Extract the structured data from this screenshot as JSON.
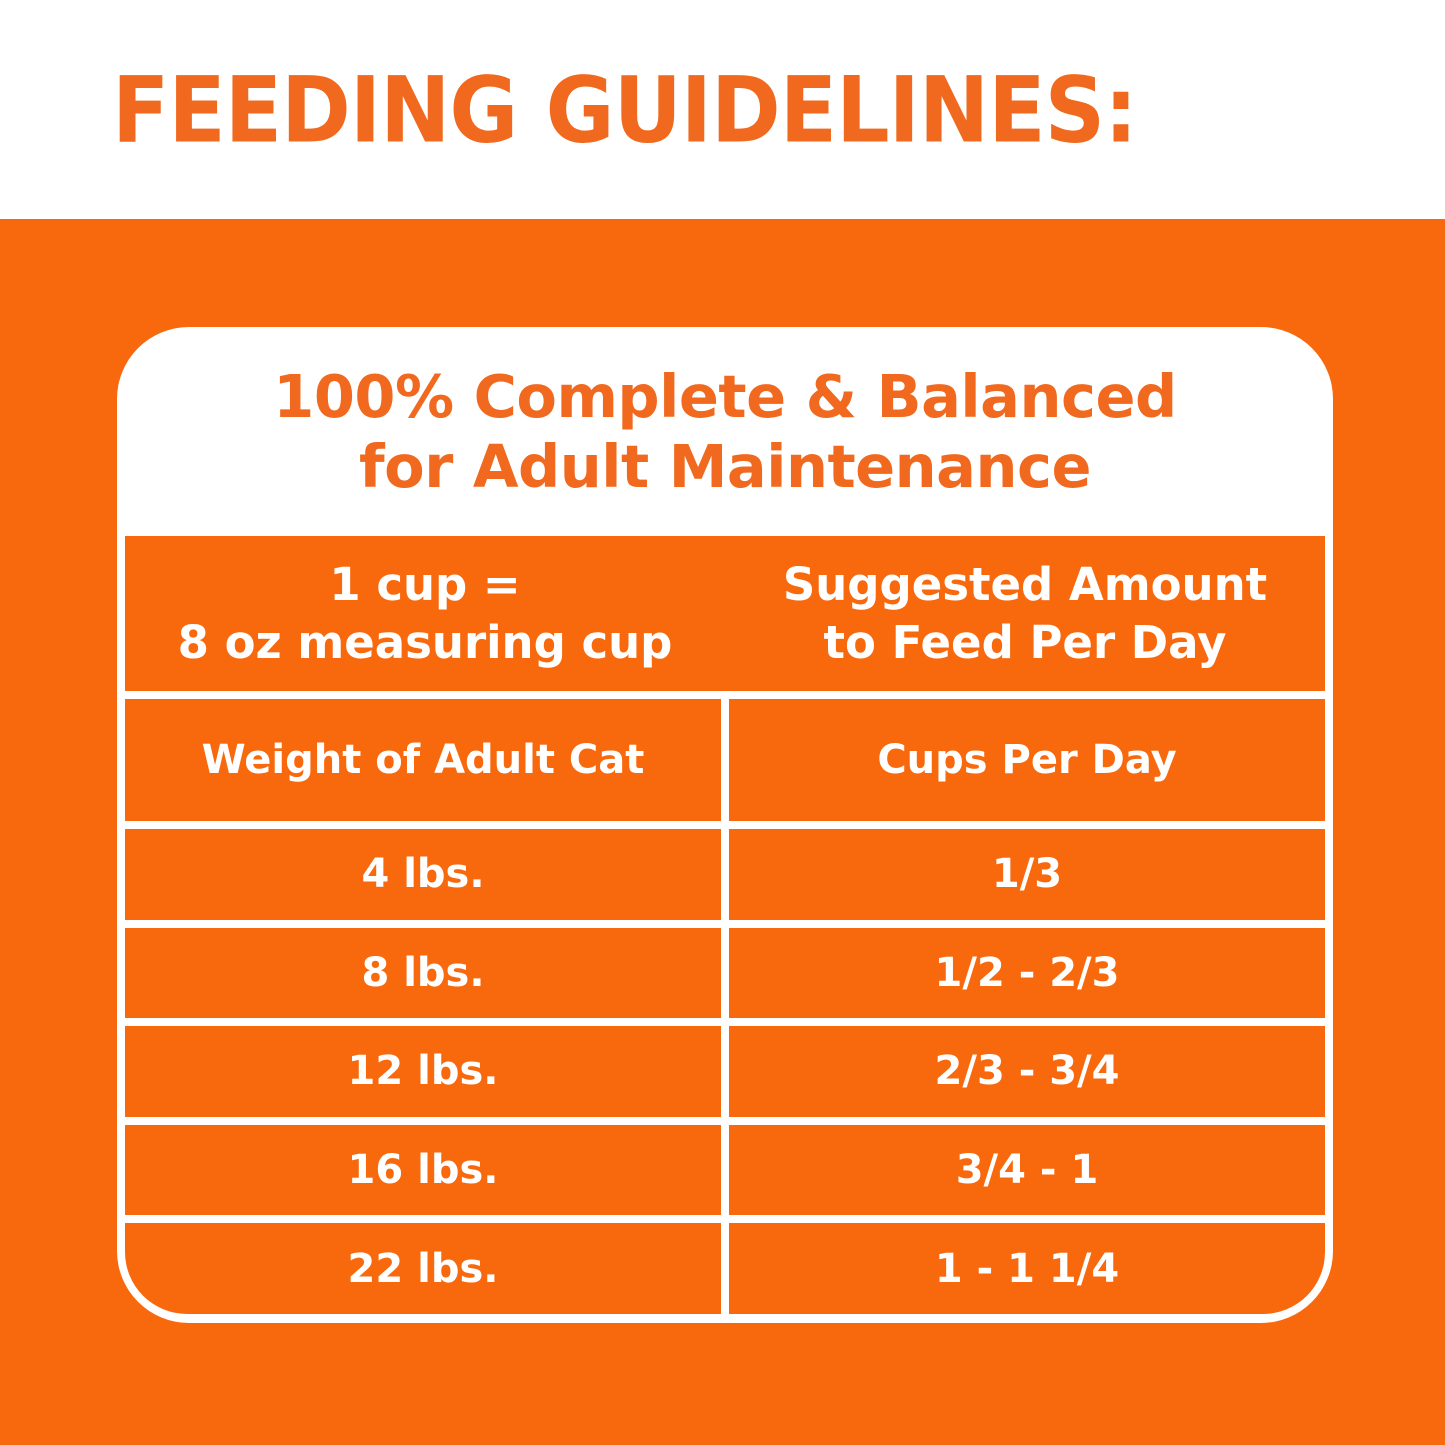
{
  "colors": {
    "background_orange": "#F8690E",
    "text_orange": "#F0691E",
    "white": "#FFFFFF"
  },
  "header": {
    "title": "FEEDING GUIDELINES:"
  },
  "card": {
    "title_line1": "100% Complete & Balanced",
    "title_line2": "for Adult Maintenance"
  },
  "table": {
    "cup_header": {
      "line1": "1 cup =",
      "line2": "8 oz measuring cup"
    },
    "amount_header": {
      "line1": "Suggested Amount",
      "line2": "to Feed Per Day"
    },
    "columns": [
      "Weight of Adult Cat",
      "Cups Per Day"
    ],
    "rows": [
      {
        "weight": "4 lbs.",
        "cups": "1/3"
      },
      {
        "weight": "8 lbs.",
        "cups": "1/2 - 2/3"
      },
      {
        "weight": "12 lbs.",
        "cups": "2/3 - 3/4"
      },
      {
        "weight": "16 lbs.",
        "cups": "3/4 - 1"
      },
      {
        "weight": "22 lbs.",
        "cups": "1 - 1 1/4"
      }
    ]
  }
}
